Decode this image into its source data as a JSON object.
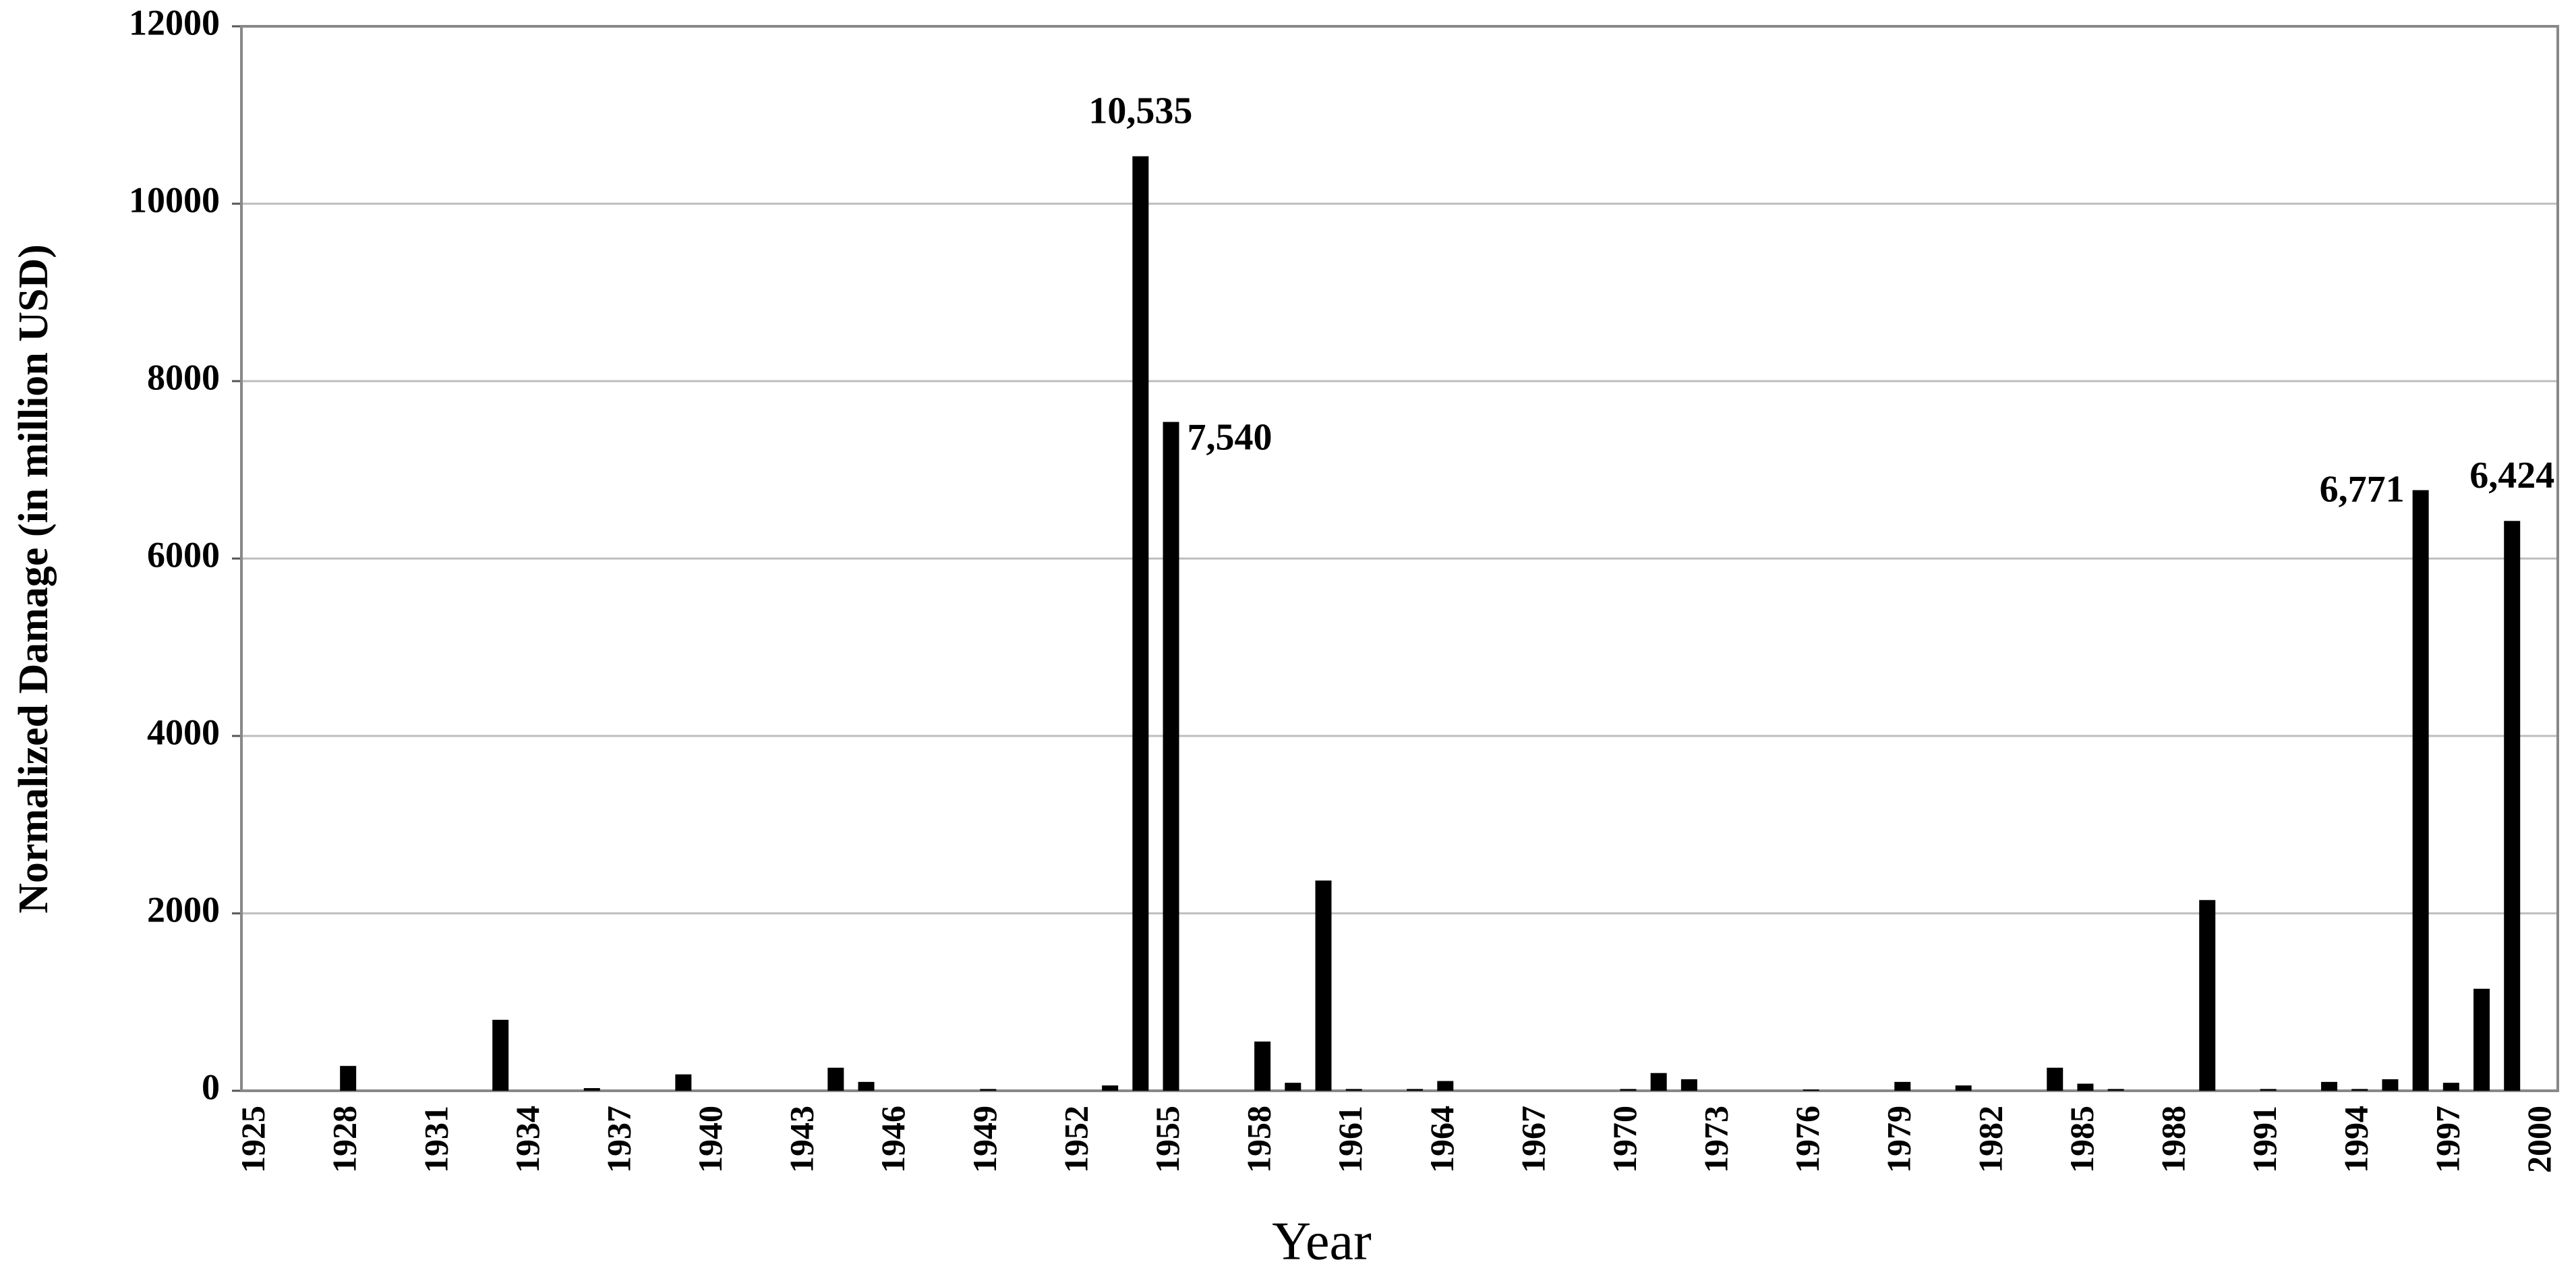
{
  "chart_data": {
    "type": "bar",
    "x_label": "Year",
    "y_label": "Normalized Damage (in million USD)",
    "categories": [
      "1925",
      null,
      null,
      "1928",
      null,
      null,
      "1931",
      null,
      null,
      "1934",
      null,
      null,
      "1937",
      null,
      null,
      "1940",
      null,
      null,
      "1943",
      null,
      null,
      "1946",
      null,
      null,
      "1949",
      null,
      null,
      "1952",
      null,
      null,
      "1955",
      null,
      null,
      "1958",
      null,
      null,
      "1961",
      null,
      null,
      "1964",
      null,
      null,
      "1967",
      null,
      null,
      "1970",
      null,
      null,
      "1973",
      null,
      null,
      "1976",
      null,
      null,
      "1979",
      null,
      null,
      "1982",
      null,
      null,
      "1985",
      null,
      null,
      "1988",
      null,
      null,
      "1991",
      null,
      null,
      "1994",
      null,
      null,
      "1997",
      null,
      null,
      "2000"
    ],
    "values": [
      0,
      0,
      0,
      280,
      0,
      0,
      0,
      0,
      800,
      0,
      0,
      30,
      0,
      0,
      185,
      0,
      0,
      0,
      0,
      260,
      100,
      0,
      0,
      0,
      20,
      0,
      0,
      0,
      60,
      10535,
      7540,
      0,
      0,
      555,
      90,
      2370,
      20,
      0,
      20,
      110,
      0,
      0,
      0,
      0,
      0,
      20,
      200,
      130,
      0,
      0,
      0,
      15,
      0,
      0,
      100,
      0,
      60,
      0,
      0,
      260,
      80,
      20,
      0,
      0,
      2150,
      0,
      20,
      0,
      100,
      20,
      130,
      6771,
      90,
      1150,
      6424,
      0
    ],
    "value_labels": [
      null,
      null,
      null,
      null,
      null,
      null,
      null,
      null,
      null,
      null,
      null,
      null,
      null,
      null,
      null,
      null,
      null,
      null,
      null,
      null,
      null,
      null,
      null,
      null,
      null,
      null,
      null,
      null,
      null,
      "10,535",
      "7,540",
      null,
      null,
      null,
      null,
      null,
      null,
      null,
      null,
      null,
      null,
      null,
      null,
      null,
      null,
      null,
      null,
      null,
      null,
      null,
      null,
      null,
      null,
      null,
      null,
      null,
      null,
      null,
      null,
      null,
      null,
      null,
      null,
      null,
      null,
      null,
      null,
      null,
      null,
      null,
      null,
      "6,771",
      null,
      null,
      "6,424",
      null
    ],
    "color": "#000000",
    "ylim": [
      0,
      12000
    ],
    "yticks": [
      0,
      2000,
      4000,
      6000,
      8000,
      10000,
      12000
    ],
    "grid": true
  }
}
